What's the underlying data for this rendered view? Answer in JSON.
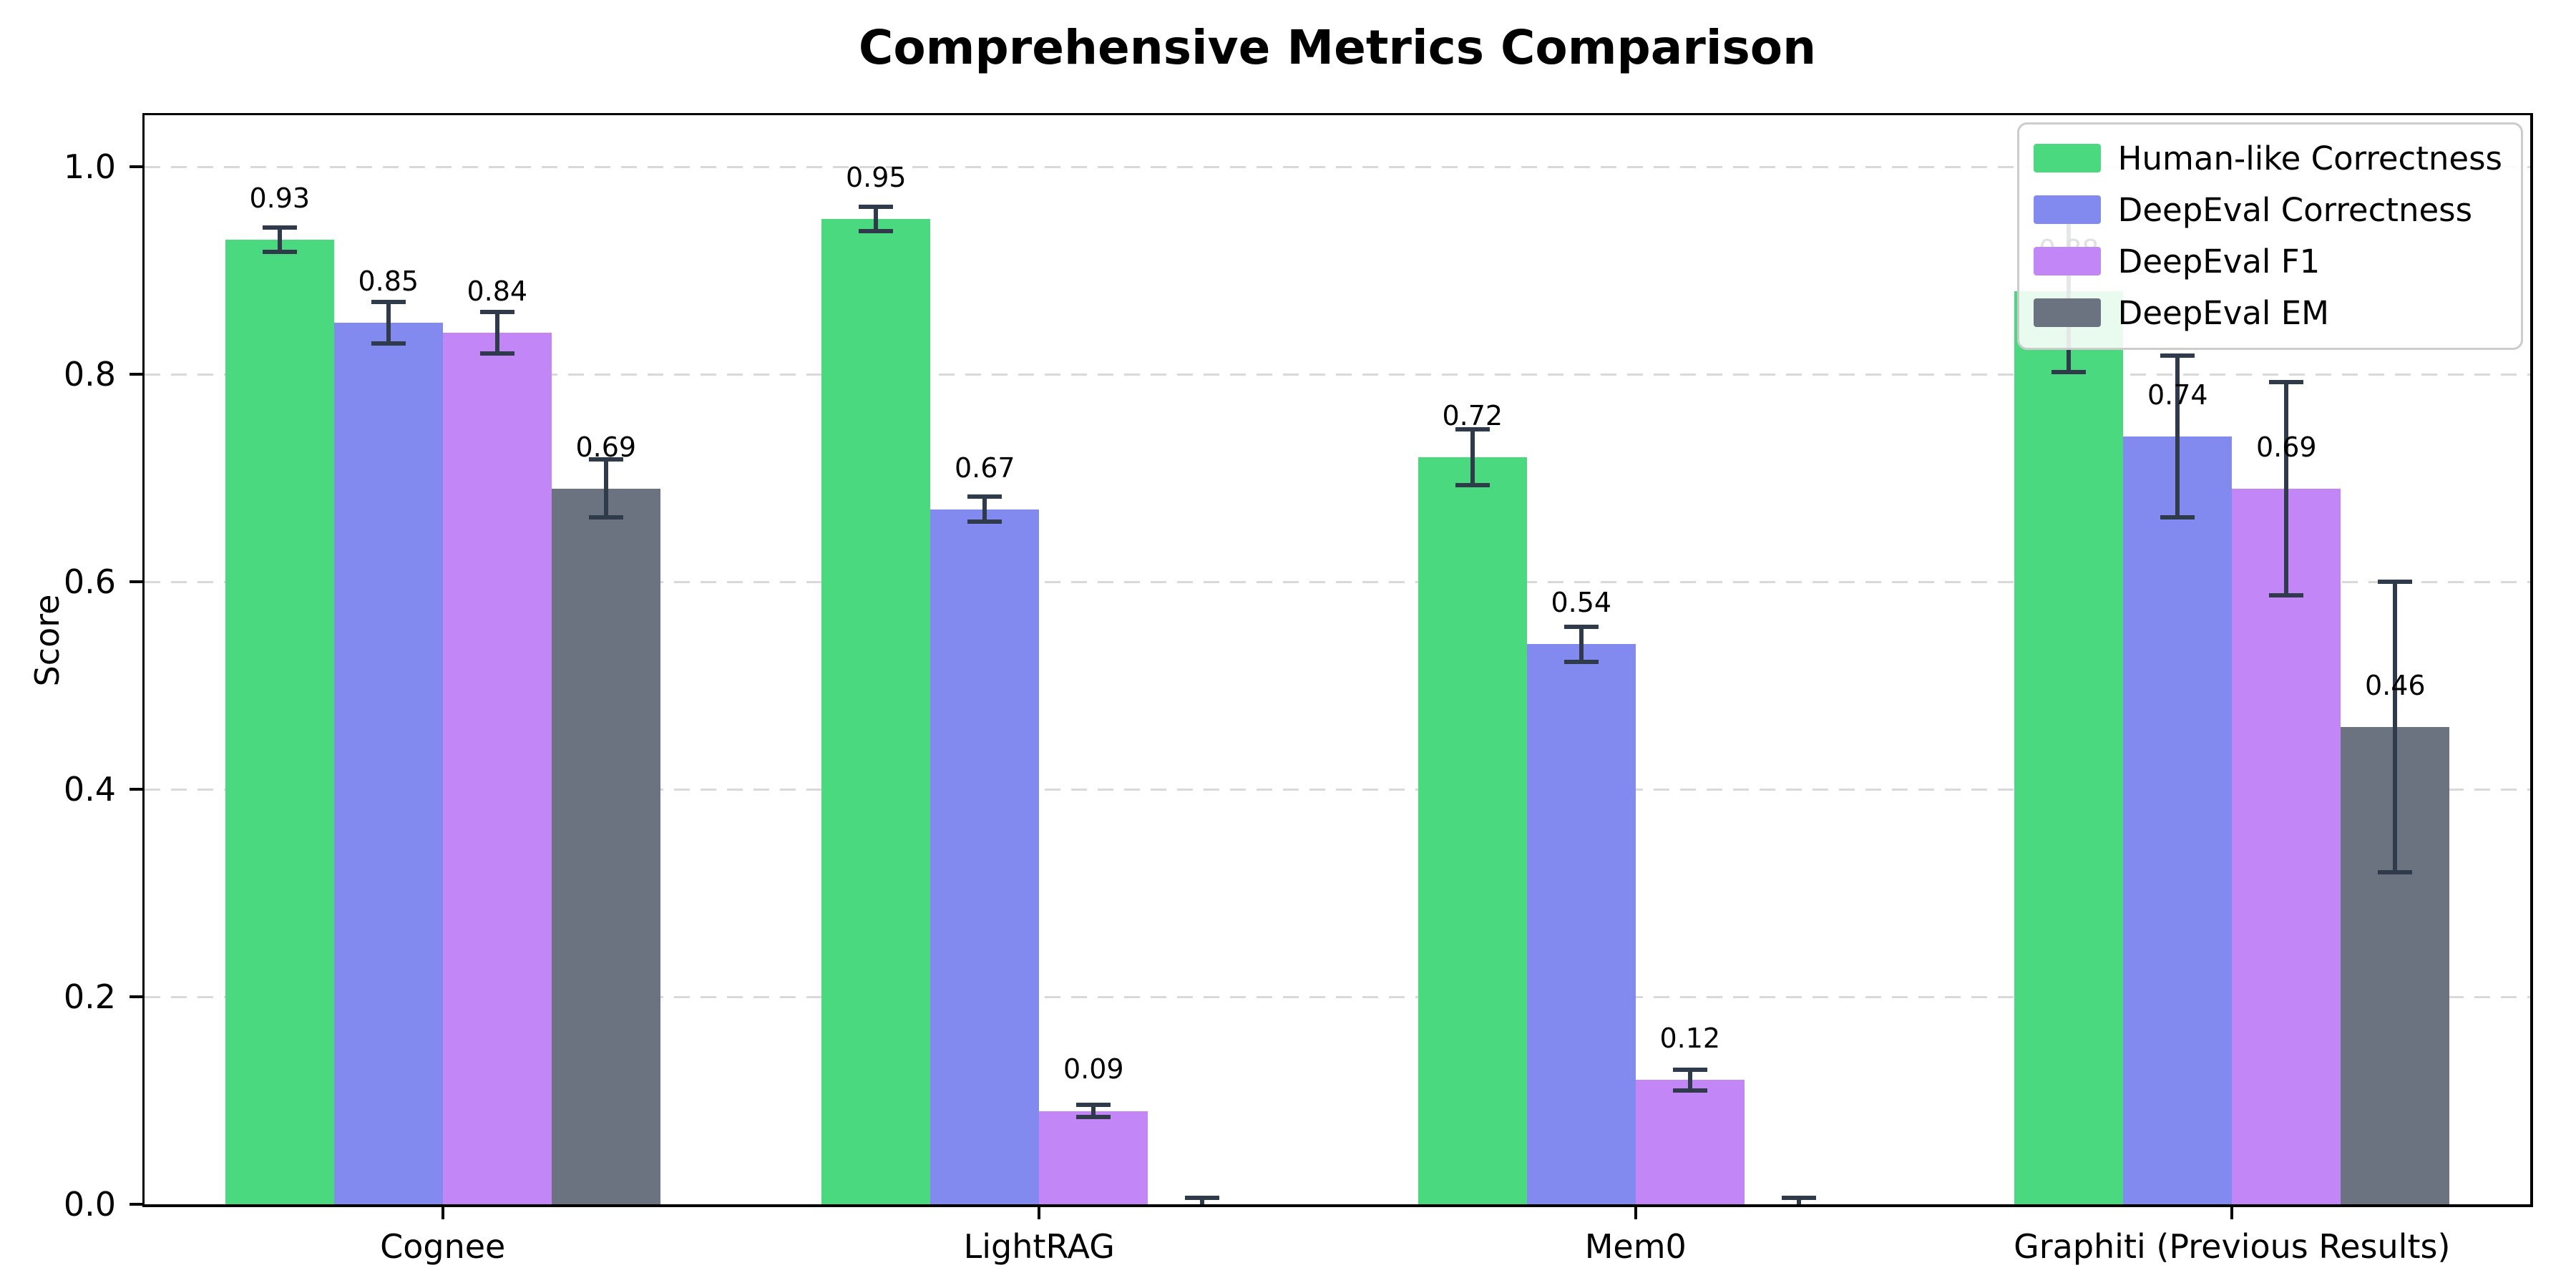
{
  "figure": {
    "title": "Comprehensive Metrics Comparison"
  },
  "chart_data": {
    "type": "bar",
    "title": "Comprehensive Metrics Comparison",
    "xlabel": "",
    "ylabel": "Score",
    "categories": [
      "Cognee",
      "LightRAG",
      "Mem0",
      "Graphiti (Previous Results)"
    ],
    "ylim": [
      0,
      1.05
    ],
    "yticks": [
      0.0,
      0.2,
      0.4,
      0.6,
      0.8,
      1.0
    ],
    "ytick_labels": [
      "0.0",
      "0.2",
      "0.4",
      "0.6",
      "0.8",
      "1.0"
    ],
    "grid": "horizontal-dashed",
    "grid_color": "#d9d9d9",
    "legend_position": "upper right",
    "error_bar_color": "#2f3a4a",
    "series": [
      {
        "name": "Human-like Correctness",
        "color": "#4bd97f",
        "values": [
          0.93,
          0.95,
          0.72,
          0.88
        ],
        "errors": [
          0.012,
          0.012,
          0.027,
          0.078
        ],
        "labels": [
          "0.93",
          "0.95",
          "0.72",
          "0.88"
        ]
      },
      {
        "name": "DeepEval Correctness",
        "color": "#828af0",
        "values": [
          0.85,
          0.67,
          0.54,
          0.74
        ],
        "errors": [
          0.02,
          0.012,
          0.017,
          0.078
        ],
        "labels": [
          "0.85",
          "0.67",
          "0.54",
          "0.74"
        ]
      },
      {
        "name": "DeepEval F1",
        "color": "#c286f6",
        "values": [
          0.84,
          0.09,
          0.12,
          0.69
        ],
        "errors": [
          0.02,
          0.006,
          0.01,
          0.103
        ],
        "labels": [
          "0.84",
          "0.09",
          "0.12",
          "0.69"
        ]
      },
      {
        "name": "DeepEval EM",
        "color": "#6b7280",
        "values": [
          0.69,
          0.0,
          0.0,
          0.46
        ],
        "errors": [
          0.028,
          0.006,
          0.006,
          0.14
        ],
        "labels": [
          "0.69",
          null,
          null,
          "0.46"
        ]
      }
    ]
  }
}
